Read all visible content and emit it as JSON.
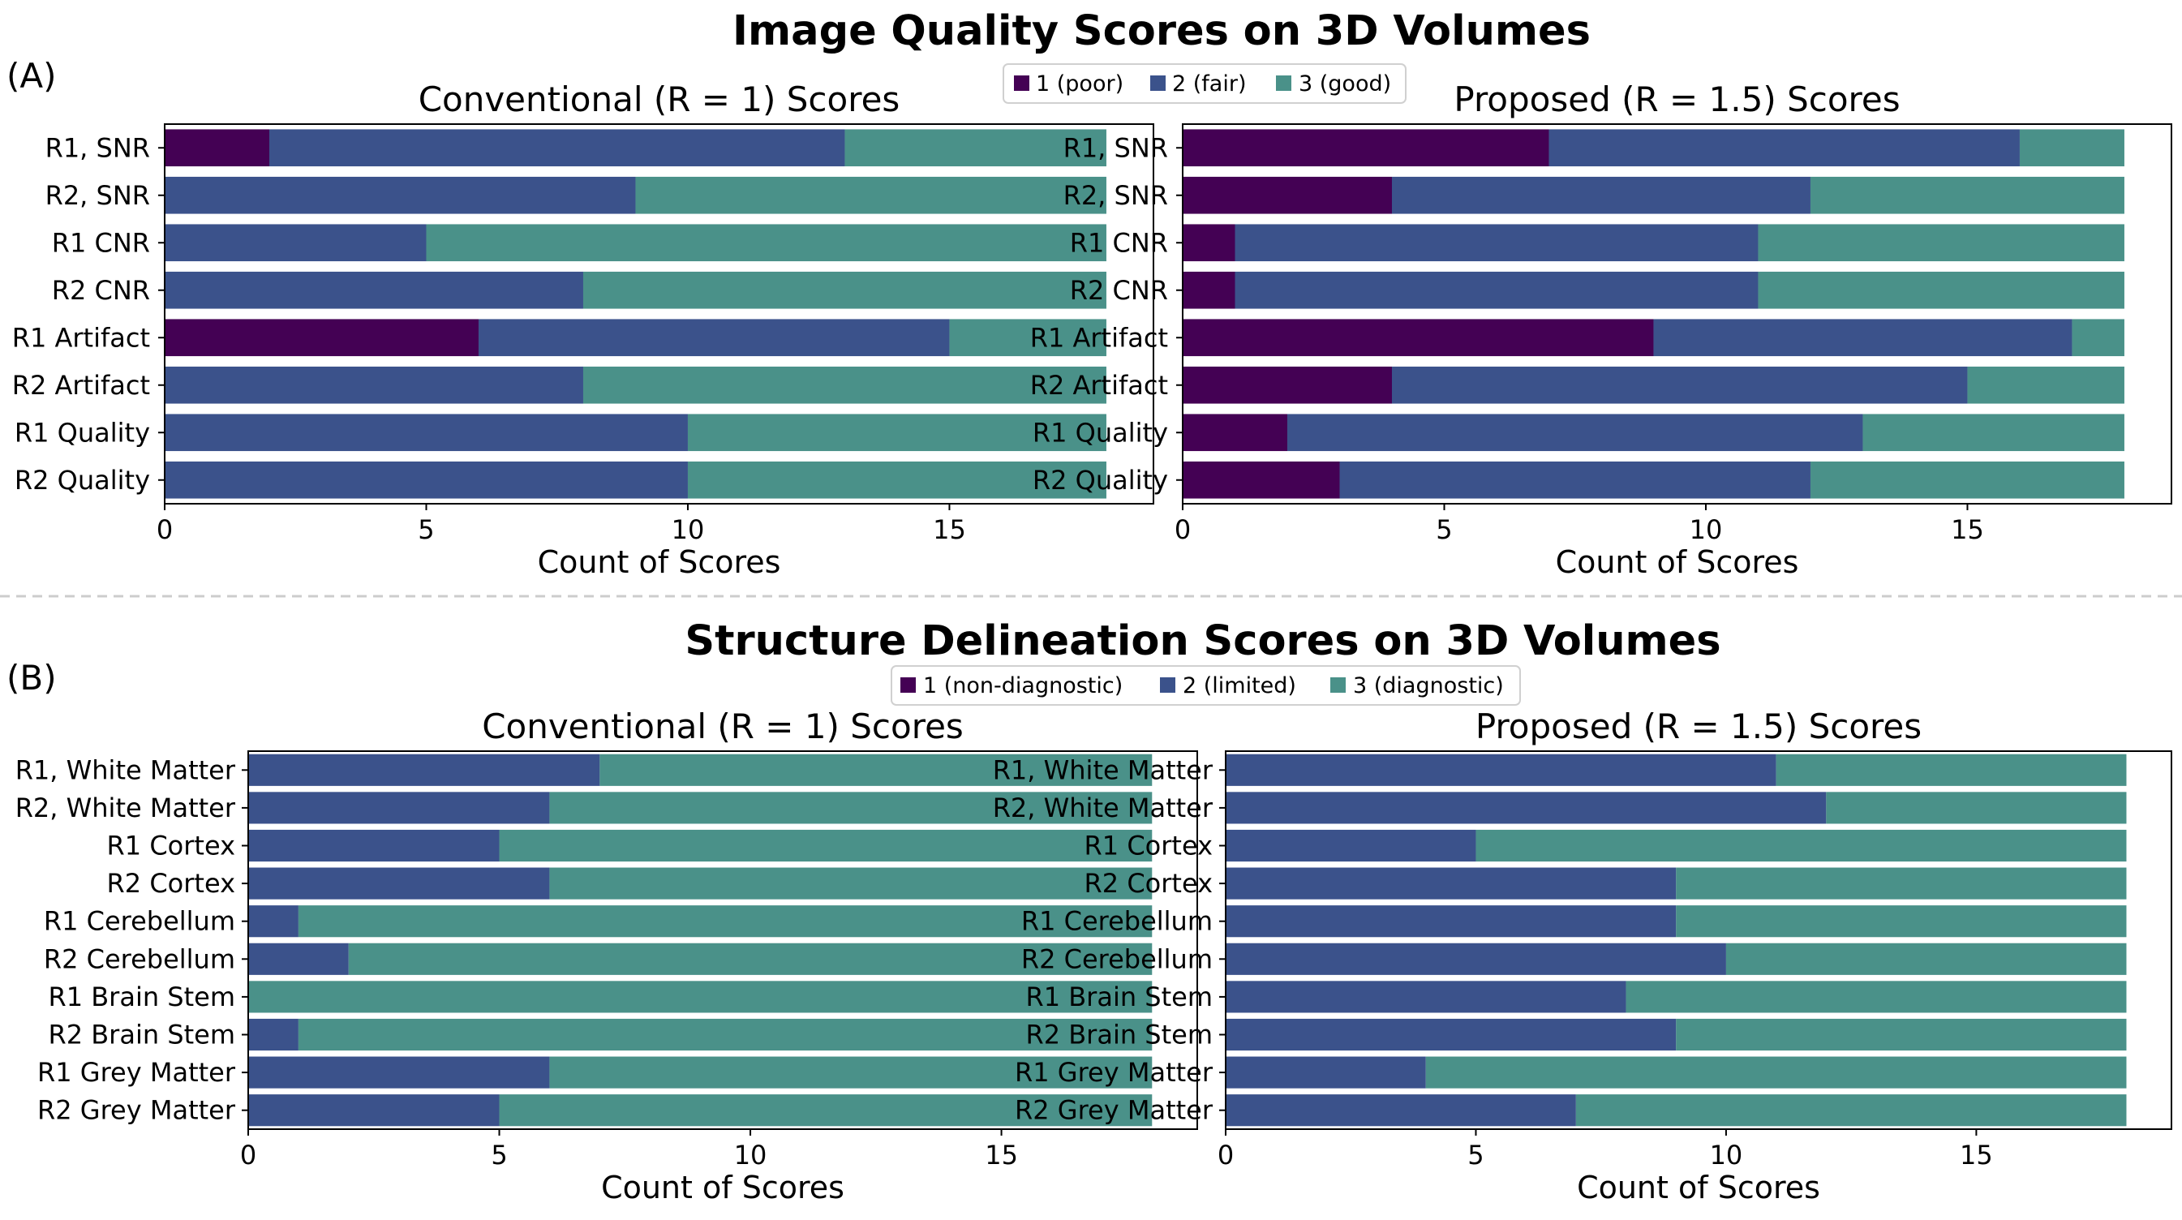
{
  "figure": {
    "section_a": {
      "panel_label": "(A)",
      "title": "Image Quality Scores on 3D Volumes",
      "legend": [
        {
          "label": "1 (poor)",
          "color": "#440154"
        },
        {
          "label": "2 (fair)",
          "color": "#3b528b"
        },
        {
          "label": "3 (good)",
          "color": "#4a9189"
        }
      ]
    },
    "section_b": {
      "panel_label": "(B)",
      "title": "Structure Delineation Scores on 3D Volumes",
      "legend": [
        {
          "label": "1 (non-diagnostic)",
          "color": "#440154"
        },
        {
          "label": "2 (limited)",
          "color": "#3b528b"
        },
        {
          "label": "3 (diagnostic)",
          "color": "#4a9189"
        }
      ]
    }
  },
  "chart_data": [
    {
      "type": "bar",
      "orientation": "horizontal",
      "stacked": true,
      "section": "A",
      "title": "Conventional (R = 1) Scores",
      "xlabel": "Count of Scores",
      "ylabel": "",
      "xlim": [
        0,
        18.9
      ],
      "xticks": [
        0,
        5,
        10,
        15
      ],
      "categories": [
        "R1, SNR",
        "R2, SNR",
        "R1 CNR",
        "R2 CNR",
        "R1 Artifact",
        "R2 Artifact",
        "R1 Quality",
        "R2 Quality"
      ],
      "series": [
        {
          "name": "1 (poor)",
          "color": "#440154",
          "values": [
            2,
            0,
            0,
            0,
            6,
            0,
            0,
            0
          ]
        },
        {
          "name": "2 (fair)",
          "color": "#3b528b",
          "values": [
            11,
            9,
            5,
            8,
            9,
            8,
            10,
            10
          ]
        },
        {
          "name": "3 (good)",
          "color": "#4a9189",
          "values": [
            5,
            9,
            13,
            10,
            3,
            10,
            8,
            8
          ]
        }
      ]
    },
    {
      "type": "bar",
      "orientation": "horizontal",
      "stacked": true,
      "section": "A",
      "title": "Proposed (R = 1.5) Scores",
      "xlabel": "Count of Scores",
      "ylabel": "",
      "xlim": [
        0,
        18.9
      ],
      "xticks": [
        0,
        5,
        10,
        15
      ],
      "categories": [
        "R1, SNR",
        "R2, SNR",
        "R1 CNR",
        "R2 CNR",
        "R1 Artifact",
        "R2 Artifact",
        "R1 Quality",
        "R2 Quality"
      ],
      "series": [
        {
          "name": "1 (poor)",
          "color": "#440154",
          "values": [
            7,
            4,
            1,
            1,
            9,
            4,
            2,
            3
          ]
        },
        {
          "name": "2 (fair)",
          "color": "#3b528b",
          "values": [
            9,
            8,
            10,
            10,
            8,
            11,
            11,
            9
          ]
        },
        {
          "name": "3 (good)",
          "color": "#4a9189",
          "values": [
            2,
            6,
            7,
            7,
            1,
            3,
            5,
            6
          ]
        }
      ]
    },
    {
      "type": "bar",
      "orientation": "horizontal",
      "stacked": true,
      "section": "B",
      "title": "Conventional (R = 1) Scores",
      "xlabel": "Count of Scores",
      "ylabel": "",
      "xlim": [
        0,
        18.9
      ],
      "xticks": [
        0,
        5,
        10,
        15
      ],
      "categories": [
        "R1, White Matter",
        "R2, White Matter",
        "R1 Cortex",
        "R2 Cortex",
        "R1 Cerebellum",
        "R2 Cerebellum",
        "R1 Brain Stem",
        "R2 Brain Stem",
        "R1 Grey Matter",
        "R2 Grey Matter"
      ],
      "series": [
        {
          "name": "1 (non-diagnostic)",
          "color": "#440154",
          "values": [
            0,
            0,
            0,
            0,
            0,
            0,
            0,
            0,
            0,
            0
          ]
        },
        {
          "name": "2 (limited)",
          "color": "#3b528b",
          "values": [
            7,
            6,
            5,
            6,
            1,
            2,
            0,
            1,
            6,
            5
          ]
        },
        {
          "name": "3 (diagnostic)",
          "color": "#4a9189",
          "values": [
            11,
            12,
            13,
            12,
            17,
            16,
            18,
            17,
            12,
            13
          ]
        }
      ]
    },
    {
      "type": "bar",
      "orientation": "horizontal",
      "stacked": true,
      "section": "B",
      "title": "Proposed (R = 1.5) Scores",
      "xlabel": "Count of Scores",
      "ylabel": "",
      "xlim": [
        0,
        18.9
      ],
      "xticks": [
        0,
        5,
        10,
        15
      ],
      "categories": [
        "R1, White Matter",
        "R2, White Matter",
        "R1 Cortex",
        "R2 Cortex",
        "R1 Cerebellum",
        "R2 Cerebellum",
        "R1 Brain Stem",
        "R2 Brain Stem",
        "R1 Grey Matter",
        "R2 Grey Matter"
      ],
      "series": [
        {
          "name": "1 (non-diagnostic)",
          "color": "#440154",
          "values": [
            0,
            0,
            0,
            0,
            0,
            0,
            0,
            0,
            0,
            0
          ]
        },
        {
          "name": "2 (limited)",
          "color": "#3b528b",
          "values": [
            11,
            12,
            5,
            9,
            9,
            10,
            8,
            9,
            4,
            7
          ]
        },
        {
          "name": "3 (diagnostic)",
          "color": "#4a9189",
          "values": [
            7,
            6,
            13,
            9,
            9,
            8,
            10,
            9,
            14,
            11
          ]
        }
      ]
    }
  ]
}
